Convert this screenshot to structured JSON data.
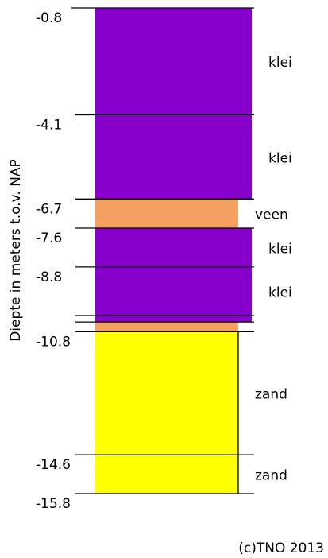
{
  "axis_label": "Diepte in meters t.o.v. NAP",
  "credit": "(c)TNO 2013",
  "bottom": -15.8,
  "layers": [
    {
      "top": -0.8,
      "name": "klei",
      "color": "#8800cc"
    },
    {
      "top": -4.1,
      "name": "klei",
      "color": "#8800cc"
    },
    {
      "top": -6.7,
      "name": "veen",
      "color": "#f4a060"
    },
    {
      "top": -7.6,
      "name": "klei",
      "color": "#8800cc"
    },
    {
      "top": -8.8,
      "name": "klei",
      "color": "#8800cc"
    },
    {
      "top": -10.3,
      "color": "#8800cc"
    },
    {
      "top": -10.5,
      "color": "#f4a060"
    },
    {
      "top": -10.8,
      "name": "zand",
      "color": "#ffff00"
    },
    {
      "top": -14.6,
      "name": "zand",
      "color": "#ffff00"
    }
  ]
}
